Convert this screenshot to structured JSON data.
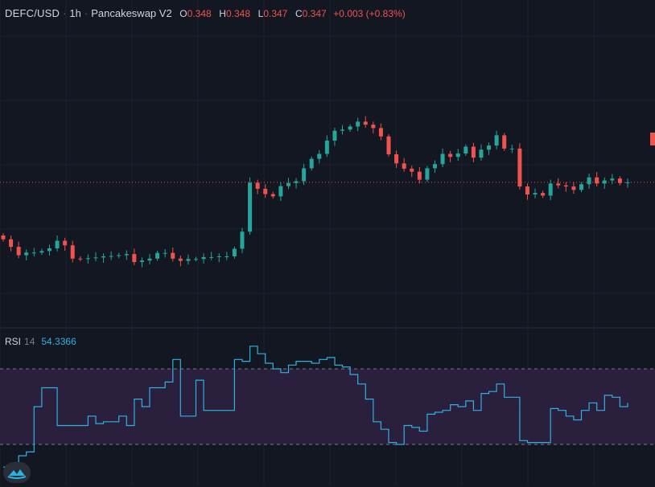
{
  "header": {
    "symbol": "DEFC/USD",
    "interval": "1h",
    "exchange": "Pancakeswap V2",
    "open_label": "O",
    "open": "0.348",
    "high_label": "H",
    "high": "0.348",
    "low_label": "L",
    "low": "0.347",
    "close_label": "C",
    "close": "0.347",
    "change": "+0.003 (+0.83%)"
  },
  "rsi_header": {
    "name": "RSI",
    "period": "14",
    "value": "54.3366"
  },
  "colors": {
    "background": "#131722",
    "grid": "#1e222d",
    "up": "#26a69a",
    "down": "#ef5350",
    "rsi_line": "#2fb1e0",
    "rsi_band": "#2a1f3d",
    "last_price_line": "#ef5350"
  },
  "icons": {
    "logo": "tradingview-logo-icon"
  },
  "chart_data": [
    {
      "type": "candlestick",
      "title": "DEFC/USD 1h Pancakeswap V2",
      "last_price": 0.347,
      "ylim": [
        0.315,
        0.387
      ],
      "close_series": [
        0.332,
        0.33,
        0.3278,
        0.3285,
        0.3285,
        0.3289,
        0.3296,
        0.3316,
        0.3304,
        0.3269,
        0.3268,
        0.327,
        0.3272,
        0.3275,
        0.3276,
        0.3278,
        0.3281,
        0.326,
        0.3264,
        0.3269,
        0.3284,
        0.3284,
        0.3269,
        0.3263,
        0.3268,
        0.3268,
        0.3273,
        0.3273,
        0.3275,
        0.3275,
        0.3295,
        0.334,
        0.3469,
        0.3453,
        0.3439,
        0.3433,
        0.346,
        0.3468,
        0.3473,
        0.3507,
        0.3532,
        0.3545,
        0.358,
        0.3606,
        0.3609,
        0.3617,
        0.363,
        0.3622,
        0.3613,
        0.3591,
        0.3544,
        0.352,
        0.3506,
        0.3498,
        0.3477,
        0.3507,
        0.3518,
        0.3545,
        0.3537,
        0.3546,
        0.3564,
        0.3535,
        0.3556,
        0.3567,
        0.3594,
        0.3559,
        0.3559,
        0.3459,
        0.3438,
        0.3442,
        0.3435,
        0.3467,
        0.3462,
        0.3459,
        0.345,
        0.3465,
        0.3483,
        0.3467,
        0.3475,
        0.348,
        0.3468,
        0.347
      ]
    },
    {
      "type": "line",
      "title": "RSI 14",
      "bands": [
        30,
        70
      ],
      "ylim": [
        10,
        90
      ],
      "values": [
        18,
        20,
        24,
        26,
        50,
        60,
        60,
        40,
        40,
        40,
        40,
        45,
        41,
        42,
        42,
        45,
        40,
        54,
        50,
        60,
        60,
        63,
        75,
        45,
        45,
        64,
        48,
        48,
        48,
        48,
        75,
        74,
        82,
        78,
        73,
        70,
        68,
        72,
        74,
        74,
        73,
        75,
        76,
        72,
        71,
        67,
        62,
        54,
        42,
        38,
        31,
        30,
        40,
        39,
        37,
        46,
        47,
        48,
        51,
        50,
        53,
        48,
        57,
        58,
        62,
        55,
        55,
        32,
        31,
        31,
        31,
        49,
        48,
        45,
        43,
        48,
        52,
        48,
        56,
        55,
        50,
        52
      ]
    }
  ]
}
